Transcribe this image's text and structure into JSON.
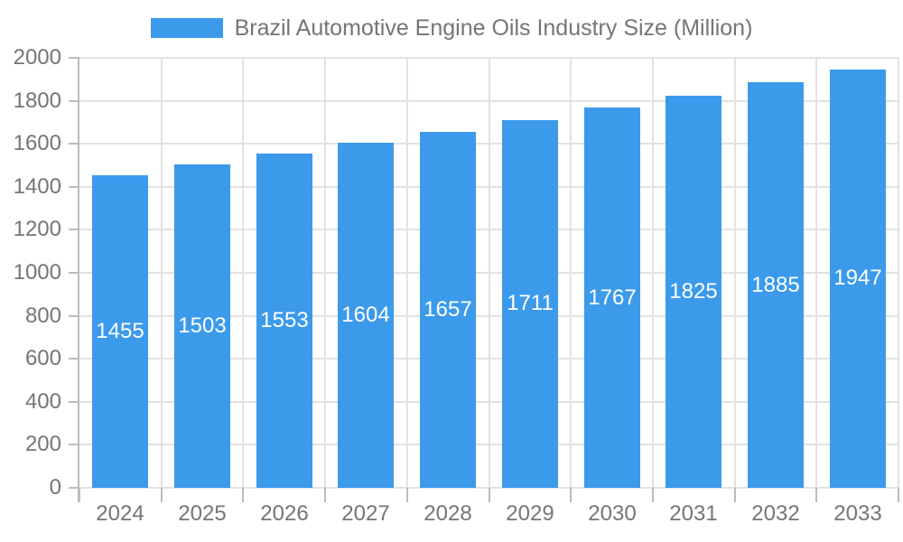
{
  "colors": {
    "bar": "#3C9AEB",
    "grid": "#E2E2E2",
    "axis": "#BCBCBC",
    "text": "#757575",
    "value_label": "#FFFFFF",
    "background": "#FFFFFF"
  },
  "chart_data": {
    "type": "bar",
    "title": "Brazil Automotive Engine Oils Industry Size (Million)",
    "legend": [
      "Brazil Automotive Engine Oils Industry Size (Million)"
    ],
    "legend_position": "top-center",
    "categories": [
      "2024",
      "2025",
      "2026",
      "2027",
      "2028",
      "2029",
      "2030",
      "2031",
      "2032",
      "2033"
    ],
    "values": [
      1455,
      1503,
      1553,
      1604,
      1657,
      1711,
      1767,
      1825,
      1885,
      1947
    ],
    "bar_labels": [
      "1455",
      "1503",
      "1553",
      "1604",
      "1657",
      "1711",
      "1767",
      "1825",
      "1885",
      "1947"
    ],
    "bar_labels_position": "inside-center",
    "xlabel": "",
    "ylabel": "",
    "ylim": [
      0,
      2000
    ],
    "yticks": [
      0,
      200,
      400,
      600,
      800,
      1000,
      1200,
      1400,
      1600,
      1800,
      2000
    ],
    "grid": true
  }
}
